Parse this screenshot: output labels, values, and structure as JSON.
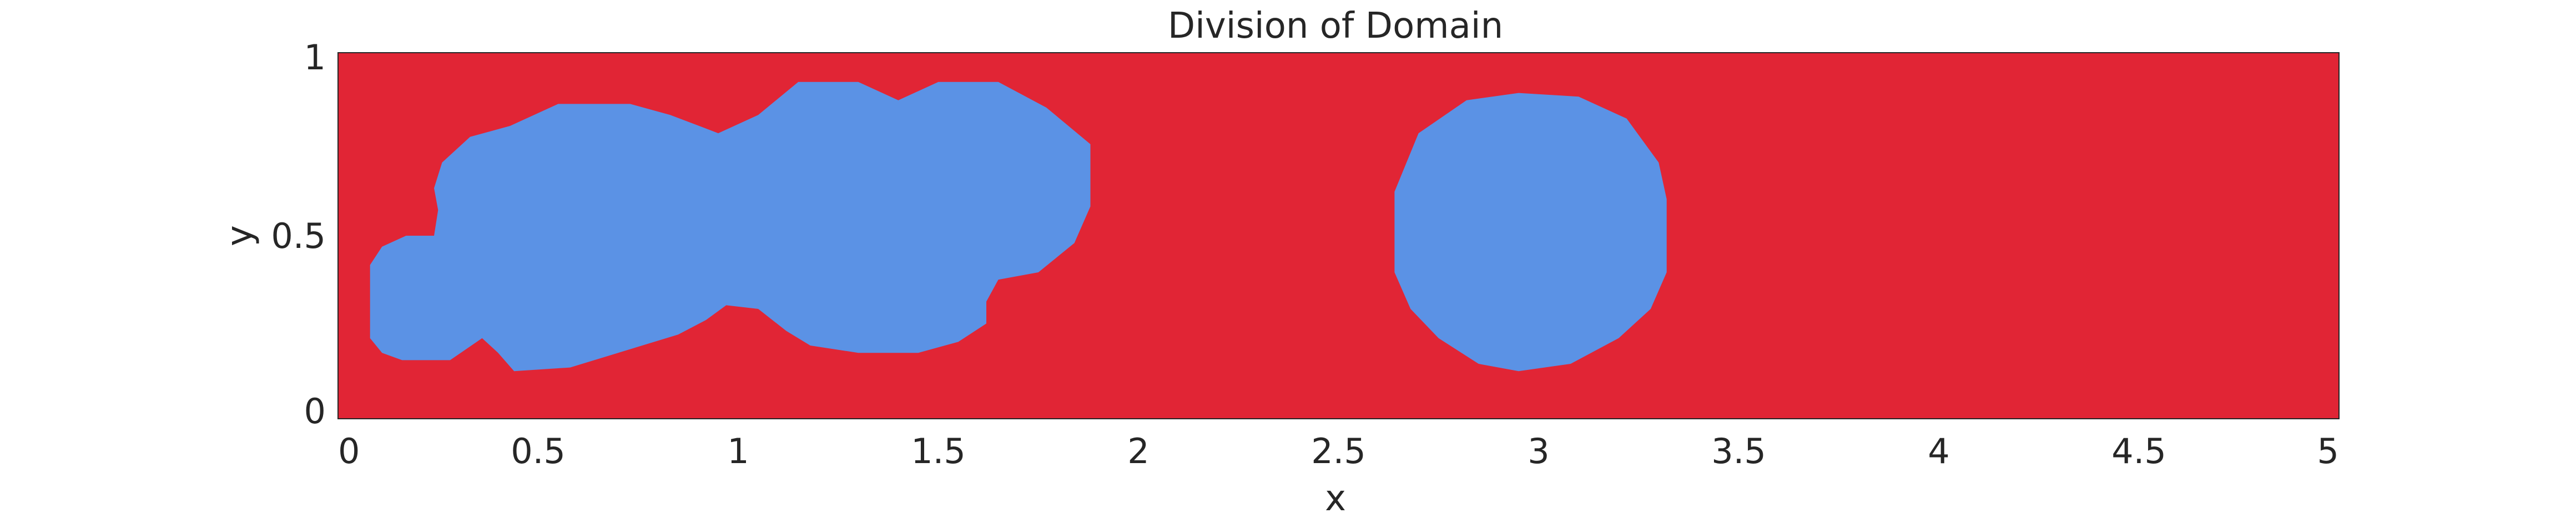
{
  "chart_data": {
    "type": "heatmap",
    "title": "Division of Domain",
    "xlabel": "x",
    "ylabel": "y",
    "xlim": [
      0,
      5
    ],
    "ylim": [
      0,
      1
    ],
    "x_ticks": [
      0,
      0.5,
      1,
      1.5,
      2,
      2.5,
      3,
      3.5,
      4,
      4.5,
      5
    ],
    "x_tick_labels": [
      "0",
      "0.5",
      "1",
      "1.5",
      "2",
      "2.5",
      "3",
      "3.5",
      "4",
      "4.5",
      "5"
    ],
    "y_ticks": [
      0,
      0.5,
      1
    ],
    "y_tick_labels": [
      "0",
      "0.5",
      "1"
    ],
    "grid": false,
    "background_region": {
      "color": "#e12535"
    },
    "regions": [
      {
        "color": "#5b92e5",
        "outline": [
          [
            0.08,
            0.22
          ],
          [
            0.08,
            0.42
          ],
          [
            0.11,
            0.47
          ],
          [
            0.17,
            0.5
          ],
          [
            0.24,
            0.5
          ],
          [
            0.25,
            0.57
          ],
          [
            0.24,
            0.63
          ],
          [
            0.26,
            0.7
          ],
          [
            0.33,
            0.77
          ],
          [
            0.43,
            0.8
          ],
          [
            0.55,
            0.86
          ],
          [
            0.73,
            0.86
          ],
          [
            0.83,
            0.83
          ],
          [
            0.95,
            0.78
          ],
          [
            1.05,
            0.83
          ],
          [
            1.15,
            0.92
          ],
          [
            1.3,
            0.92
          ],
          [
            1.4,
            0.87
          ],
          [
            1.5,
            0.92
          ],
          [
            1.65,
            0.92
          ],
          [
            1.77,
            0.85
          ],
          [
            1.88,
            0.75
          ],
          [
            1.88,
            0.58
          ],
          [
            1.84,
            0.48
          ],
          [
            1.75,
            0.4
          ],
          [
            1.65,
            0.38
          ],
          [
            1.62,
            0.32
          ],
          [
            1.62,
            0.26
          ],
          [
            1.55,
            0.21
          ],
          [
            1.45,
            0.18
          ],
          [
            1.3,
            0.18
          ],
          [
            1.18,
            0.2
          ],
          [
            1.12,
            0.24
          ],
          [
            1.05,
            0.3
          ],
          [
            0.97,
            0.31
          ],
          [
            0.92,
            0.27
          ],
          [
            0.85,
            0.23
          ],
          [
            0.7,
            0.18
          ],
          [
            0.58,
            0.14
          ],
          [
            0.44,
            0.13
          ],
          [
            0.4,
            0.18
          ],
          [
            0.36,
            0.22
          ],
          [
            0.28,
            0.16
          ],
          [
            0.16,
            0.16
          ],
          [
            0.11,
            0.18
          ]
        ]
      },
      {
        "color": "#5b92e5",
        "outline": [
          [
            2.64,
            0.4
          ],
          [
            2.64,
            0.62
          ],
          [
            2.7,
            0.78
          ],
          [
            2.82,
            0.87
          ],
          [
            2.95,
            0.89
          ],
          [
            3.1,
            0.88
          ],
          [
            3.22,
            0.82
          ],
          [
            3.3,
            0.7
          ],
          [
            3.32,
            0.6
          ],
          [
            3.32,
            0.4
          ],
          [
            3.28,
            0.3
          ],
          [
            3.2,
            0.22
          ],
          [
            3.08,
            0.15
          ],
          [
            2.95,
            0.13
          ],
          [
            2.85,
            0.15
          ],
          [
            2.75,
            0.22
          ],
          [
            2.68,
            0.3
          ]
        ]
      }
    ]
  }
}
